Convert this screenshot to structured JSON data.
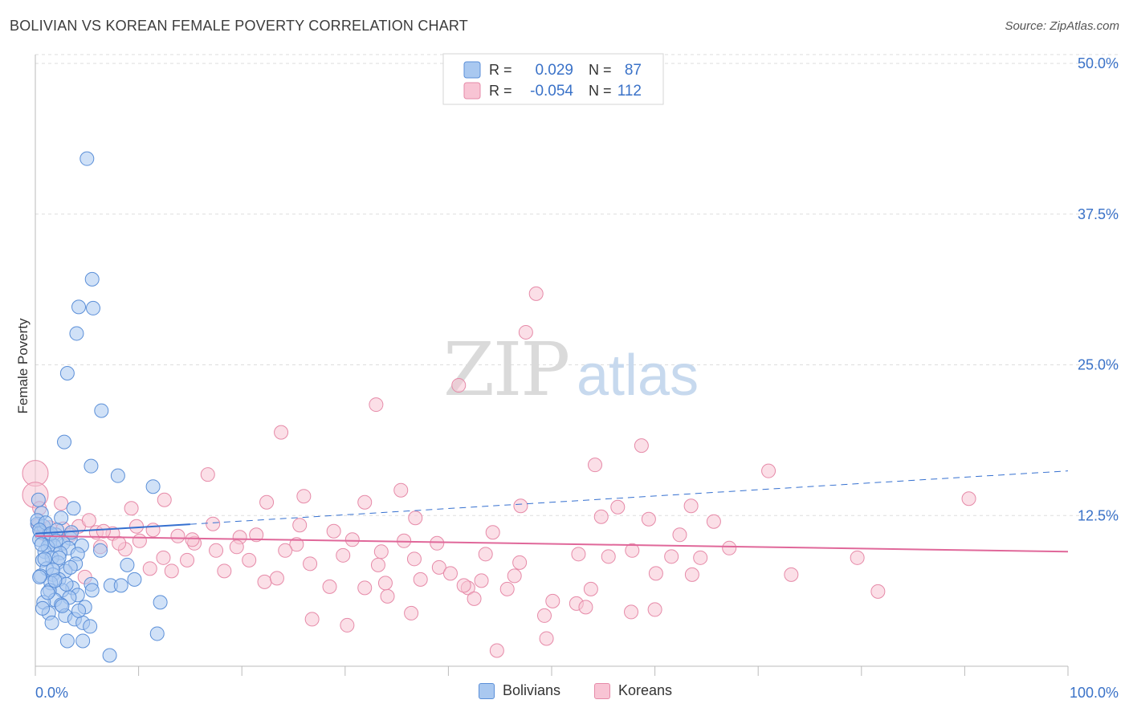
{
  "title": "BOLIVIAN VS KOREAN FEMALE POVERTY CORRELATION CHART",
  "source": "Source: ZipAtlas.com",
  "watermark": {
    "part1": "ZIP",
    "part2": "atlas"
  },
  "colors": {
    "bolivians_fill": "#a9c8f0",
    "bolivians_stroke": "#5b8fd8",
    "bolivians_line": "#3570d0",
    "koreans_fill": "#f8c4d4",
    "koreans_stroke": "#e68aa8",
    "koreans_line": "#e0689a",
    "value_text": "#3a72c8",
    "grid": "#dddddd"
  },
  "legend": [
    {
      "r_label": "R =",
      "r_value": "0.029",
      "n_label": "N =",
      "n_value": "87"
    },
    {
      "r_label": "R =",
      "r_value": "-0.054",
      "n_label": "N =",
      "n_value": "112"
    }
  ],
  "chart_data": {
    "type": "scatter",
    "title": "BOLIVIAN VS KOREAN FEMALE POVERTY CORRELATION CHART",
    "xlabel": "",
    "ylabel": "Female Poverty",
    "xlim": [
      0,
      100
    ],
    "ylim": [
      0,
      50
    ],
    "x_tick_labels": [
      "0.0%",
      "100.0%"
    ],
    "y_ticks": [
      12.5,
      25.0,
      37.5,
      50.0
    ],
    "y_tick_labels": [
      "12.5%",
      "25.0%",
      "37.5%",
      "50.0%"
    ],
    "grid": true,
    "legend_position": "top-center",
    "series": [
      {
        "name": "Bolivians",
        "r": 0.029,
        "n": 87,
        "trend": {
          "x0": 0,
          "y0": 11.0,
          "x1": 100,
          "y1": 16.2,
          "solid_until": 15
        },
        "points": [
          [
            5,
            42.1
          ],
          [
            5.5,
            32.1
          ],
          [
            4.2,
            29.8
          ],
          [
            5.6,
            29.7
          ],
          [
            4,
            27.6
          ],
          [
            3.1,
            24.3
          ],
          [
            6.4,
            21.2
          ],
          [
            2.8,
            18.6
          ],
          [
            5.4,
            16.6
          ],
          [
            8,
            15.8
          ],
          [
            11.4,
            14.9
          ],
          [
            0.3,
            13.8
          ],
          [
            3.7,
            13.1
          ],
          [
            0.6,
            12.7
          ],
          [
            2.5,
            12.3
          ],
          [
            0.2,
            11.8
          ],
          [
            0.8,
            11.6
          ],
          [
            0.5,
            11.1
          ],
          [
            1.3,
            10.9
          ],
          [
            2,
            10.9
          ],
          [
            3.4,
            10.6
          ],
          [
            0.4,
            10.5
          ],
          [
            1.4,
            10.3
          ],
          [
            2.7,
            10.2
          ],
          [
            1.8,
            10.0
          ],
          [
            4.5,
            10.0
          ],
          [
            1.2,
            9.9
          ],
          [
            3.2,
            9.8
          ],
          [
            6.3,
            9.6
          ],
          [
            0.9,
            9.5
          ],
          [
            2.4,
            9.4
          ],
          [
            4.1,
            9.3
          ],
          [
            1.6,
            9.0
          ],
          [
            0.7,
            8.8
          ],
          [
            2.2,
            8.6
          ],
          [
            3.9,
            8.5
          ],
          [
            8.9,
            8.4
          ],
          [
            1.1,
            8.1
          ],
          [
            2.9,
            7.9
          ],
          [
            1.7,
            7.6
          ],
          [
            0.5,
            7.5
          ],
          [
            2.3,
            7.2
          ],
          [
            9.6,
            7.2
          ],
          [
            1.5,
            6.9
          ],
          [
            5.4,
            6.8
          ],
          [
            7.3,
            6.7
          ],
          [
            8.3,
            6.7
          ],
          [
            3.6,
            6.5
          ],
          [
            1.4,
            6.3
          ],
          [
            2.6,
            6.3
          ],
          [
            4.1,
            5.9
          ],
          [
            3.3,
            5.7
          ],
          [
            1.9,
            5.5
          ],
          [
            0.8,
            5.3
          ],
          [
            12.1,
            5.3
          ],
          [
            2.5,
            5.1
          ],
          [
            4.8,
            4.9
          ],
          [
            1.3,
            4.4
          ],
          [
            2.9,
            4.2
          ],
          [
            3.8,
            3.9
          ],
          [
            1.6,
            3.6
          ],
          [
            4.6,
            3.6
          ],
          [
            5.3,
            3.3
          ],
          [
            11.8,
            2.7
          ],
          [
            3.1,
            2.1
          ],
          [
            4.6,
            2.1
          ],
          [
            7.2,
            0.9
          ],
          [
            0.2,
            12.1
          ],
          [
            1.0,
            11.9
          ],
          [
            0.4,
            11.3
          ],
          [
            1.5,
            11.0
          ],
          [
            2.1,
            11.3
          ],
          [
            3.5,
            11.1
          ],
          [
            0.6,
            10.1
          ],
          [
            2.0,
            10.4
          ],
          [
            0.9,
            8.9
          ],
          [
            2.3,
            9.0
          ],
          [
            1.7,
            8.0
          ],
          [
            0.4,
            7.4
          ],
          [
            3.0,
            6.8
          ],
          [
            1.2,
            6.1
          ],
          [
            2.6,
            5.0
          ],
          [
            0.7,
            4.8
          ],
          [
            4.2,
            4.6
          ],
          [
            1.9,
            7.1
          ],
          [
            5.5,
            6.3
          ],
          [
            3.4,
            8.2
          ]
        ]
      },
      {
        "name": "Koreans",
        "r": -0.054,
        "n": 112,
        "trend": {
          "x0": 0,
          "y0": 10.8,
          "x1": 100,
          "y1": 9.5
        },
        "points": [
          [
            0,
            16.0
          ],
          [
            0,
            14.2
          ],
          [
            48.5,
            30.9
          ],
          [
            47.5,
            27.7
          ],
          [
            41,
            23.3
          ],
          [
            33,
            21.7
          ],
          [
            23.8,
            19.4
          ],
          [
            58.7,
            18.3
          ],
          [
            54.2,
            16.7
          ],
          [
            71,
            16.2
          ],
          [
            16.7,
            15.9
          ],
          [
            35.4,
            14.6
          ],
          [
            26,
            14.1
          ],
          [
            90.4,
            13.9
          ],
          [
            12.5,
            13.8
          ],
          [
            22.4,
            13.6
          ],
          [
            31.9,
            13.6
          ],
          [
            47,
            13.3
          ],
          [
            56.4,
            13.2
          ],
          [
            9.3,
            13.1
          ],
          [
            0.4,
            13.1
          ],
          [
            36.8,
            12.3
          ],
          [
            59.4,
            12.2
          ],
          [
            65.7,
            12.0
          ],
          [
            4.2,
            11.6
          ],
          [
            1.4,
            11.5
          ],
          [
            2.7,
            11.4
          ],
          [
            11.4,
            11.3
          ],
          [
            28.9,
            11.2
          ],
          [
            5.9,
            11.1
          ],
          [
            7.5,
            11.0
          ],
          [
            0.8,
            11.0
          ],
          [
            3.4,
            10.9
          ],
          [
            13.8,
            10.8
          ],
          [
            19.8,
            10.7
          ],
          [
            30.7,
            10.5
          ],
          [
            35.7,
            10.4
          ],
          [
            15.4,
            10.2
          ],
          [
            25.3,
            10.1
          ],
          [
            6.3,
            9.9
          ],
          [
            8.7,
            9.7
          ],
          [
            17.5,
            9.6
          ],
          [
            24.2,
            9.6
          ],
          [
            33.5,
            9.5
          ],
          [
            43.6,
            9.3
          ],
          [
            52.6,
            9.3
          ],
          [
            55.5,
            9.1
          ],
          [
            61.6,
            9.1
          ],
          [
            64.4,
            9.0
          ],
          [
            79.6,
            9.0
          ],
          [
            12.4,
            9.0
          ],
          [
            14.7,
            8.8
          ],
          [
            20.7,
            8.8
          ],
          [
            26.6,
            8.5
          ],
          [
            33.2,
            8.4
          ],
          [
            39.1,
            8.2
          ],
          [
            11.1,
            8.1
          ],
          [
            18.3,
            7.9
          ],
          [
            40.2,
            7.7
          ],
          [
            60.1,
            7.7
          ],
          [
            63.6,
            7.6
          ],
          [
            73.2,
            7.6
          ],
          [
            46.4,
            7.5
          ],
          [
            4.8,
            7.4
          ],
          [
            37.3,
            7.2
          ],
          [
            22.2,
            7.0
          ],
          [
            28.5,
            6.6
          ],
          [
            31.9,
            6.5
          ],
          [
            41.9,
            6.5
          ],
          [
            45.7,
            6.4
          ],
          [
            53.8,
            6.4
          ],
          [
            81.6,
            6.2
          ],
          [
            34.1,
            5.8
          ],
          [
            42.5,
            5.6
          ],
          [
            50.1,
            5.4
          ],
          [
            52.4,
            5.2
          ],
          [
            53.3,
            4.9
          ],
          [
            60,
            4.7
          ],
          [
            57.7,
            4.5
          ],
          [
            36.4,
            4.4
          ],
          [
            26.8,
            3.9
          ],
          [
            30.2,
            3.4
          ],
          [
            49.5,
            2.3
          ],
          [
            44.7,
            1.3
          ],
          [
            63.5,
            13.3
          ],
          [
            36.7,
            8.9
          ],
          [
            49.3,
            4.2
          ],
          [
            41.5,
            6.7
          ],
          [
            33.9,
            6.9
          ],
          [
            43.2,
            7.1
          ],
          [
            19.5,
            9.9
          ],
          [
            9.8,
            11.6
          ],
          [
            2.5,
            13.5
          ],
          [
            0.3,
            11.7
          ],
          [
            6.6,
            11.2
          ],
          [
            15.2,
            10.5
          ],
          [
            21.4,
            10.9
          ],
          [
            25.6,
            11.7
          ],
          [
            38.9,
            10.2
          ],
          [
            29.8,
            9.2
          ],
          [
            44.3,
            11.1
          ],
          [
            57.8,
            9.6
          ],
          [
            67.2,
            9.8
          ],
          [
            17.2,
            11.8
          ],
          [
            10.1,
            10.4
          ],
          [
            23.4,
            7.3
          ],
          [
            13.2,
            7.9
          ],
          [
            5.2,
            12.1
          ],
          [
            8.1,
            10.2
          ],
          [
            46.9,
            8.6
          ],
          [
            62.4,
            10.9
          ],
          [
            54.8,
            12.4
          ]
        ]
      }
    ]
  }
}
